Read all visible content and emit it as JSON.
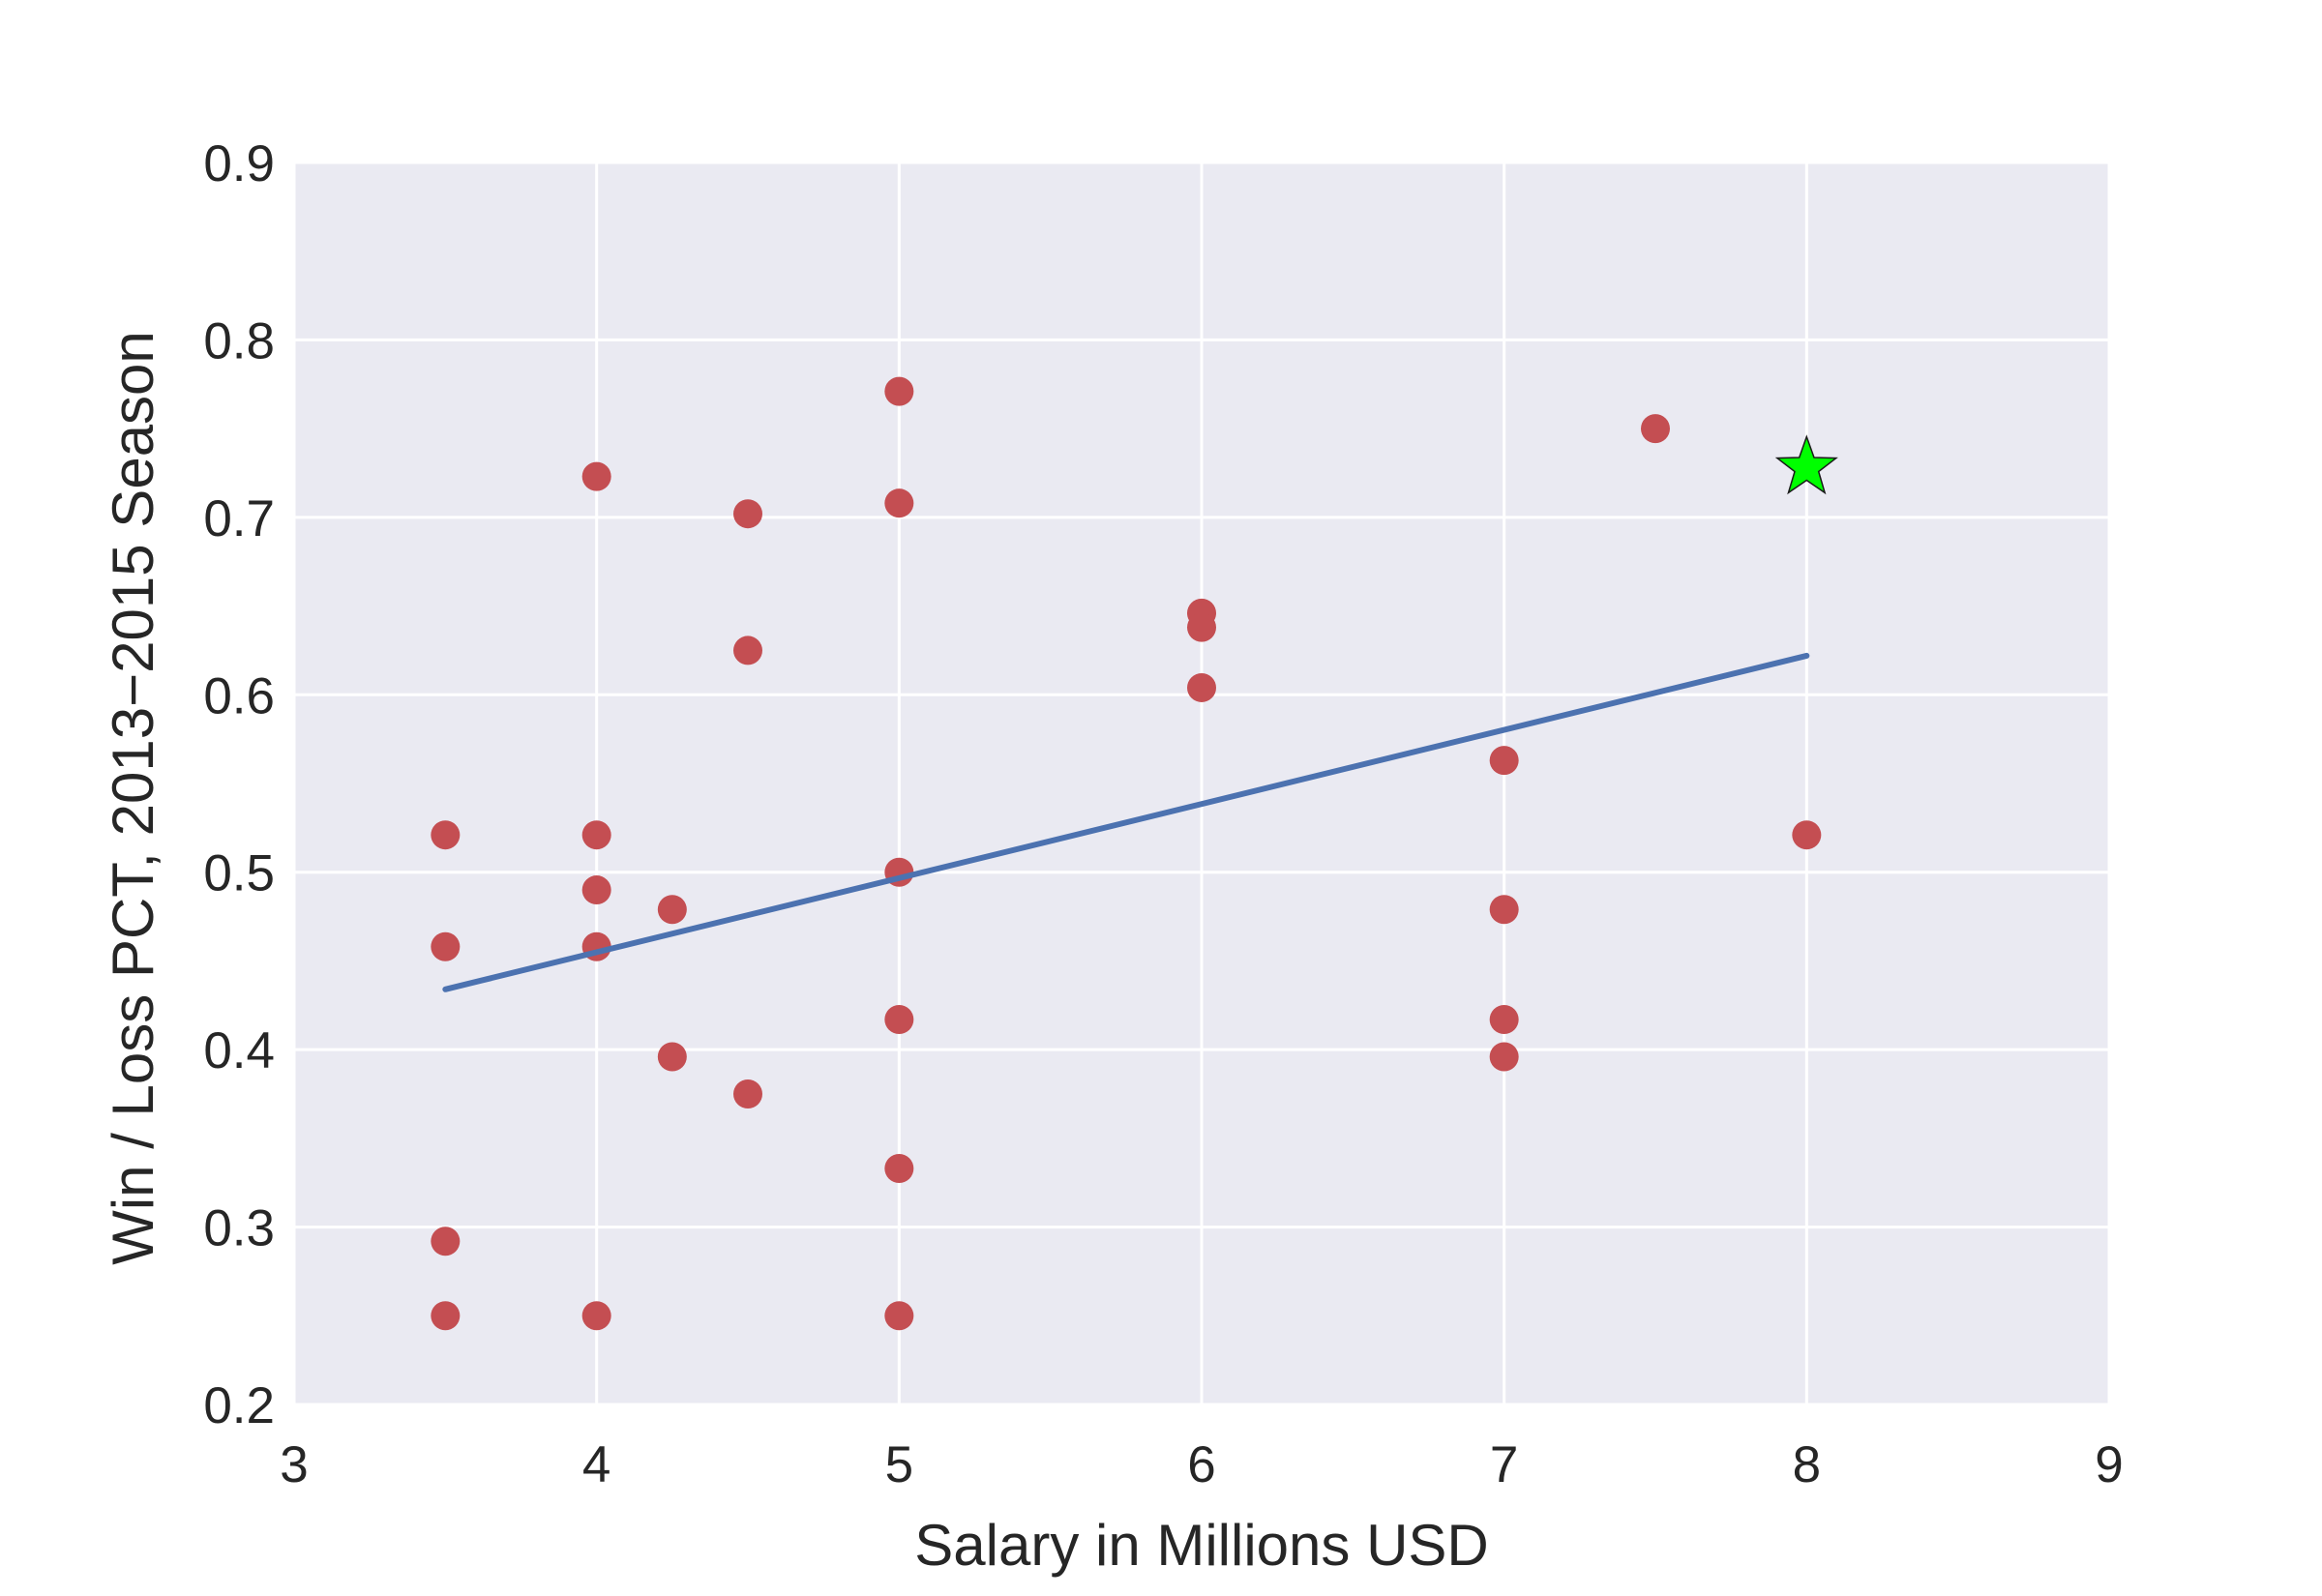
{
  "chart_data": {
    "type": "scatter",
    "title": "",
    "xlabel": "Salary in Millions USD",
    "ylabel": "Win / Loss PCT, 2013−2015 Season",
    "xlim": [
      3,
      9
    ],
    "ylim": [
      0.2,
      0.9
    ],
    "xticks": [
      3,
      4,
      5,
      6,
      7,
      8,
      9
    ],
    "xtick_labels": [
      "3",
      "4",
      "5",
      "6",
      "7",
      "8",
      "9"
    ],
    "yticks": [
      0.2,
      0.3,
      0.4,
      0.5,
      0.6,
      0.7,
      0.8,
      0.9
    ],
    "ytick_labels": [
      "0.2",
      "0.3",
      "0.4",
      "0.5",
      "0.6",
      "0.7",
      "0.8",
      "0.9"
    ],
    "grid": true,
    "background": "#EAEAF2",
    "series": [
      {
        "type": "scatter",
        "color": "#C44E52",
        "x": [
          3.5,
          3.5,
          3.5,
          3.5,
          4,
          4,
          4,
          4,
          4,
          4.25,
          4.25,
          4.5,
          4.5,
          4.5,
          5,
          5,
          5,
          5,
          5,
          5,
          6,
          6,
          6,
          7,
          7,
          7,
          7,
          7.5,
          8
        ],
        "y": [
          0.521,
          0.458,
          0.292,
          0.25,
          0.723,
          0.521,
          0.49,
          0.458,
          0.25,
          0.479,
          0.396,
          0.702,
          0.625,
          0.375,
          0.771,
          0.708,
          0.5,
          0.417,
          0.333,
          0.25,
          0.646,
          0.638,
          0.604,
          0.563,
          0.479,
          0.417,
          0.396,
          0.75,
          0.521
        ]
      },
      {
        "type": "line",
        "color": "#4C72B0",
        "x": [
          3.5,
          8
        ],
        "y": [
          0.434,
          0.622
        ]
      },
      {
        "type": "marker",
        "marker": "star",
        "color": "#00FF00",
        "x": [
          8
        ],
        "y": [
          0.728
        ]
      }
    ]
  }
}
